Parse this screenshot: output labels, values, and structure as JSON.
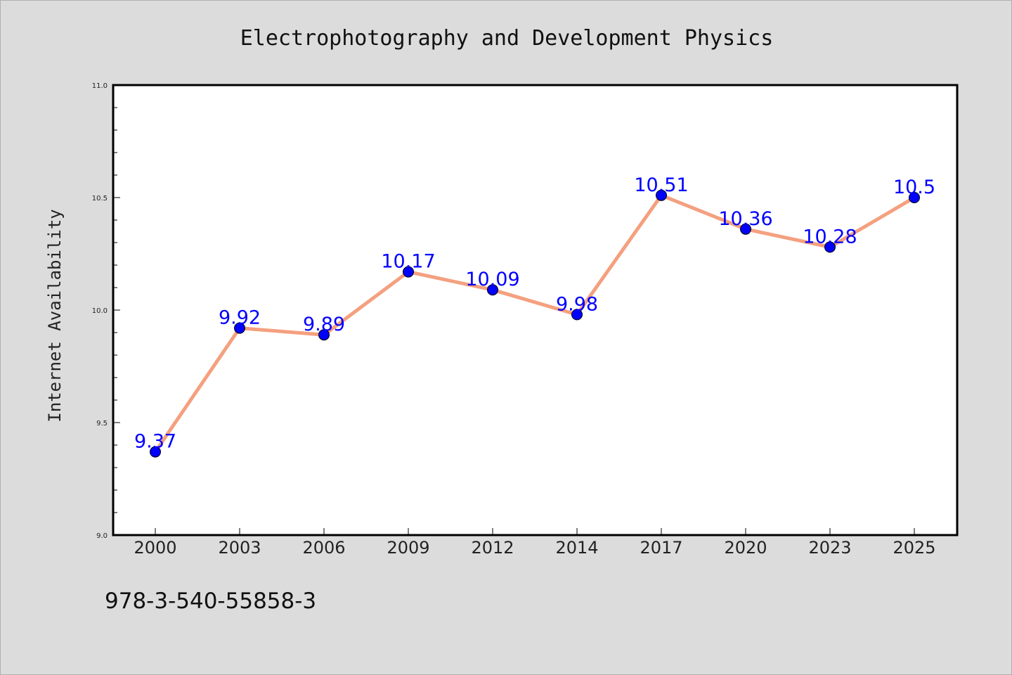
{
  "chart_data": {
    "type": "line",
    "title": "Electrophotography and Development Physics",
    "xlabel": "",
    "ylabel": "Internet Availability",
    "categories": [
      "2000",
      "2003",
      "2006",
      "2009",
      "2012",
      "2014",
      "2017",
      "2020",
      "2023",
      "2025"
    ],
    "series": [
      {
        "values": [
          9.37,
          9.92,
          9.89,
          10.17,
          10.09,
          9.98,
          10.51,
          10.36,
          10.28,
          10.5
        ],
        "value_labels": [
          "9.37",
          "9.92",
          "9.89",
          "10.17",
          "10.09",
          "9.98",
          "10.51",
          "10.36",
          "10.28",
          "10.5"
        ],
        "line_color": "#f4a07f",
        "marker_color": "#0000ff",
        "label_color": "#0000ff"
      }
    ],
    "ylim": [
      9.0,
      11.0
    ],
    "yticks": [
      "9.0",
      "9.5",
      "10.0",
      "10.5",
      "11.0"
    ],
    "grid": false,
    "legend": "none"
  },
  "footnote": "978-3-540-55858-3",
  "colors": {
    "background": "#dcdcdc",
    "plot_area": "#ffffff",
    "axes": "#000000"
  }
}
